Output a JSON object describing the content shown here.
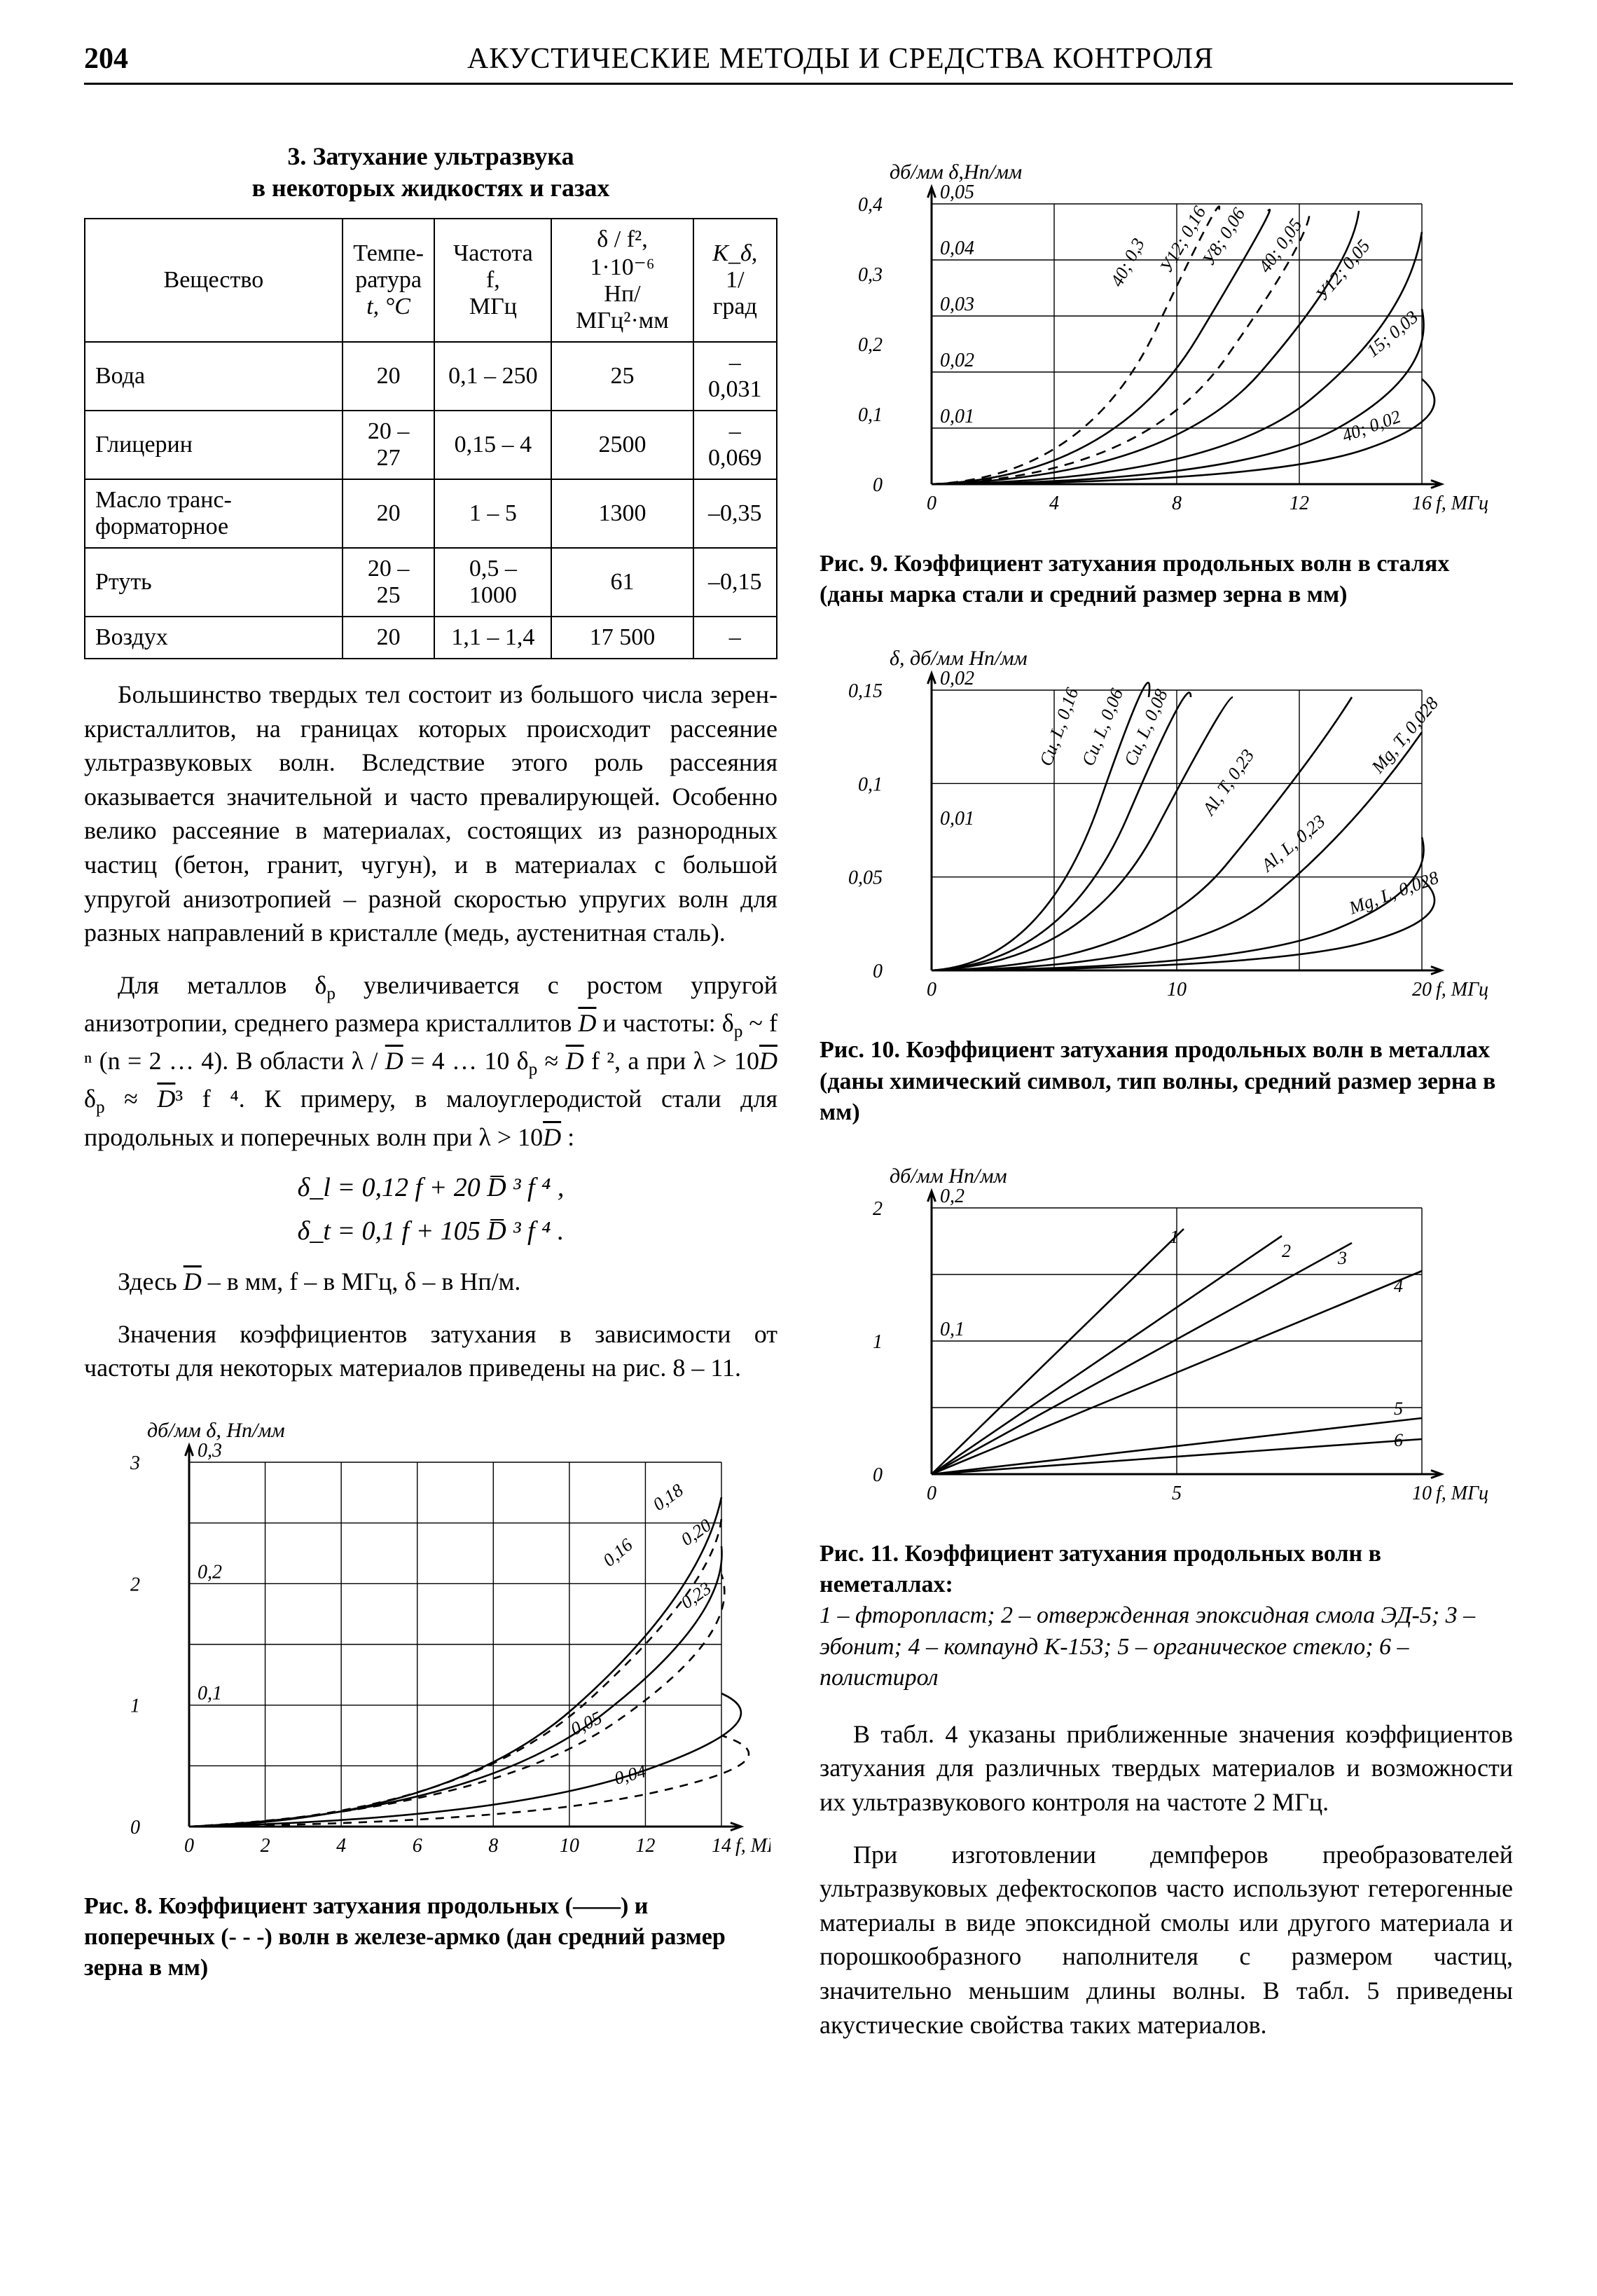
{
  "page_number": "204",
  "running_title": "АКУСТИЧЕСКИЕ МЕТОДЫ И СРЕДСТВА КОНТРОЛЯ",
  "table3": {
    "title_l1": "3. Затухание ультразвука",
    "title_l2": "в некоторых жидкостях и газах",
    "headers": {
      "c0": "Вещество",
      "c1_l1": "Темпе-",
      "c1_l2": "ратура",
      "c1_l3": "t, °C",
      "c2_l1": "Частота f,",
      "c2_l2": "МГц",
      "c3_l1": "δ / f², 1·10⁻⁶",
      "c3_l2": "Нп/МГц²·мм",
      "c4_l1": "K_δ,",
      "c4_l2": "1/град"
    },
    "rows": [
      {
        "name": "Вода",
        "t": "20",
        "f": "0,1 – 250",
        "d": "25",
        "k": "–0,031"
      },
      {
        "name": "Глицерин",
        "t": "20 – 27",
        "f": "0,15 – 4",
        "d": "2500",
        "k": "–0,069"
      },
      {
        "name": "Масло транс-форматорное",
        "t": "20",
        "f": "1 – 5",
        "d": "1300",
        "k": "–0,35"
      },
      {
        "name": "Ртуть",
        "t": "20 – 25",
        "f": "0,5 – 1000",
        "d": "61",
        "k": "–0,15"
      },
      {
        "name": "Воздух",
        "t": "20",
        "f": "1,1 – 1,4",
        "d": "17 500",
        "k": "–"
      }
    ]
  },
  "para1": "Большинство твердых тел состоит из большого числа зерен-кристаллитов, на границах которых происходит рассеяние ультразвуковых волн. Вследствие этого роль рассеяния оказывается значительной и часто превалирующей. Особенно велико рассеяние в материалах, состоящих из разнородных частиц (бетон, гранит, чугун), и в материалах с большой упругой анизотропией – разной скоростью упругих волн для разных направлений в кристалле (медь, аустенитная сталь).",
  "para2_a": "Для металлов δ",
  "para2_b": " увеличивается с ростом упругой анизотропии, среднего размера кристаллитов ",
  "para2_c": " и частоты: δ",
  "para2_d": " ~ f ⁿ (n = 2 … 4). В области λ / ",
  "para2_e": " = 4 … 10 δ",
  "para2_f": " ≈ ",
  "para2_g": " f ², а при λ > 10",
  "para2_h": "   δ",
  "para2_i": " ≈ ",
  "para2_j": "³ f ⁴. К примеру, в малоуглеродистой стали для продольных и поперечных волн при λ > 10",
  "para2_k": " :",
  "eq1": "δ_l = 0,12 f + 20  D̅ ³ f ⁴ ,",
  "eq2": "δ_t = 0,1 f + 105  D̅ ³ f ⁴ .",
  "para3_a": "Здесь ",
  "para3_b": " – в мм, f – в МГц, δ – в Нп/м.",
  "para4": "Значения коэффициентов затухания в зависимости от частоты для некоторых материалов приведены на рис. 8 – 11.",
  "fig8": {
    "axis_left": "дб/мм  δ, Нп/мм",
    "y_db": [
      "0",
      "1",
      "2",
      "3"
    ],
    "y_np": [
      "0",
      "0,1",
      "0,2",
      "0,3"
    ],
    "x": [
      "0",
      "2",
      "4",
      "6",
      "8",
      "10",
      "12",
      "14"
    ],
    "x_label": "f, МГц",
    "curve_labels": [
      "0,18",
      "0,20",
      "0,16",
      "0,23",
      "0,05",
      "0,04"
    ],
    "caption_b": "Рис. 8. Коэффициент затухания продольных (——) и поперечных (- - -) волн в железе-армко (дан средний размер зерна в мм)"
  },
  "fig9": {
    "axis_left": "дб/мм  δ,Нп/мм",
    "y_db": [
      "0",
      "0,1",
      "0,2",
      "0,3",
      "0,4"
    ],
    "y_np": [
      "0",
      "0,01",
      "0,02",
      "0,03",
      "0,04",
      "0,05"
    ],
    "x": [
      "0",
      "4",
      "8",
      "12",
      "16"
    ],
    "x_label": "f, МГц",
    "curve_labels": [
      "40; 0,3",
      "У12; 0,16",
      "У8; 0,06",
      "40; 0,05",
      "У12; 0,05",
      "15; 0,03",
      "40; 0,02"
    ],
    "caption_b": "Рис. 9. Коэффициент затухания продольных волн в сталях (даны марка стали и средний размер зерна в мм)"
  },
  "fig10": {
    "axis_left": "δ, дб/мм Нп/мм",
    "y_db": [
      "0",
      "0,05",
      "0,1",
      "0,15"
    ],
    "y_np": [
      "0",
      "0,01",
      "0,02"
    ],
    "x": [
      "0",
      "10",
      "20"
    ],
    "x_label": "f, МГц",
    "curve_labels": [
      "Cu, L, 0,16",
      "Cu, L, 0,06",
      "Cu, L, 0,08",
      "Al, T, 0,23",
      "Al, L, 0,23",
      "Mg, L, 0,028",
      "Mg, T, 0,028"
    ],
    "caption_b": "Рис. 10. Коэффициент затухания продольных волн в металлах (даны химический символ, тип волны, средний размер зерна в мм)"
  },
  "fig11": {
    "axis_left": "дб/мм  Нп/мм",
    "y_db": [
      "0",
      "1",
      "2"
    ],
    "y_np": [
      "0",
      "0,1",
      "0,2"
    ],
    "x": [
      "0",
      "5",
      "10"
    ],
    "x_label": "f, МГц",
    "curve_labels": [
      "1",
      "2",
      "3",
      "4",
      "5",
      "6"
    ],
    "caption_b": "Рис. 11. Коэффициент затухания продольных волн в неметаллах:",
    "legend": "1 – фторопласт;  2 – отвержденная эпоксидная смола ЭД-5; 3 – эбонит;  4 – компаунд К-153;  5 – органическое стекло; 6 – полистирол"
  },
  "para5": "В табл. 4 указаны приближенные значения коэффициентов затухания для различных твердых материалов и возможности их ультразвукового контроля на частоте 2 МГц.",
  "para6": "При изготовлении демпферов преобразователей ультразвуковых дефектоскопов часто используют гетерогенные материалы в виде эпоксидной смолы или другого материала и порошкообразного наполнителя с размером частиц, значительно меньшим длины волны. В табл. 5 приведены акустические свойства таких материалов.",
  "style": {
    "axis_color": "#000",
    "grid_color": "#000",
    "curve_color": "#000",
    "axis_width": 3,
    "grid_width": 1.4,
    "curve_width": 2.6,
    "font_axis": 28,
    "font_label": 30
  }
}
